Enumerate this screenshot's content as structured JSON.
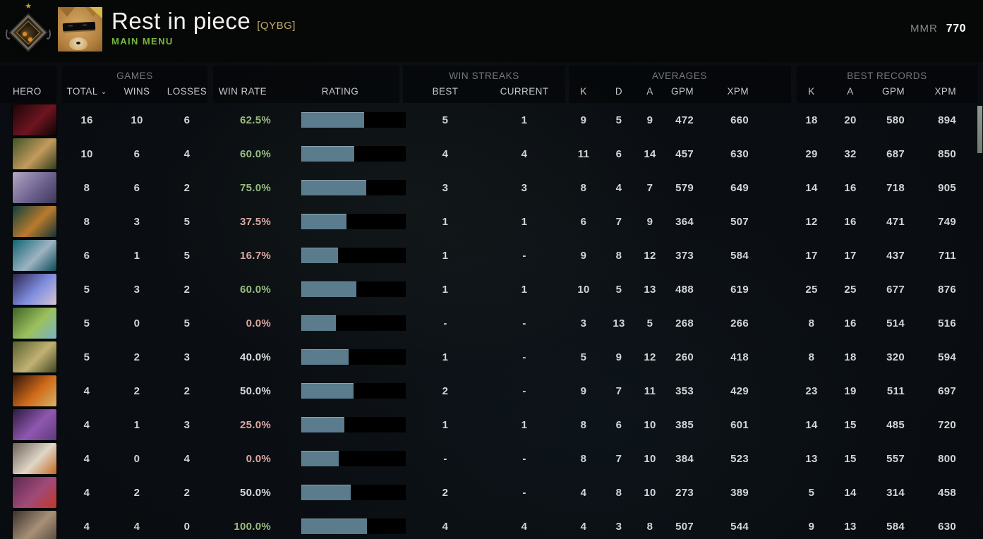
{
  "header": {
    "title": "Rest in piece",
    "clan_tag": "[QYBG]",
    "nav_label": "MAIN MENU",
    "mmr_label": "MMR",
    "mmr_value": "770"
  },
  "icons": {
    "star": "★",
    "sort_chevron": "⌄"
  },
  "colors": {
    "win_green": "#98bd80",
    "loss_pink": "#dcaaa5",
    "neutral_text": "#dadbdc",
    "bar_fill": "#5a7c8d",
    "bar_background": "#000000",
    "main_menu_green": "#76b83e",
    "clan_gold": "#c3ad67"
  },
  "table": {
    "group_labels": {
      "games": "GAMES",
      "win_streaks": "WIN STREAKS",
      "averages": "AVERAGES",
      "best_records": "BEST RECORDS"
    },
    "columns": {
      "hero": "HERO",
      "total": "TOTAL",
      "wins": "WINS",
      "losses": "LOSSES",
      "win_rate": "WIN RATE",
      "rating": "RATING",
      "best": "BEST",
      "current": "CURRENT",
      "k": "K",
      "d": "D",
      "a": "A",
      "gpm": "GPM",
      "xpm": "XPM",
      "rec_k": "K",
      "rec_a": "A",
      "rec_gpm": "GPM",
      "rec_xpm": "XPM"
    },
    "sort_column": "total"
  },
  "rows": [
    {
      "hero": "shadow-fiend",
      "portrait": [
        "#1a0508",
        "#6e1520",
        "#0a0304"
      ],
      "total": "16",
      "wins": "10",
      "losses": "6",
      "win_rate": "62.5%",
      "win_rate_tone": "green",
      "rating_fill": 0.6,
      "streak_best": "5",
      "streak_current": "1",
      "k": "9",
      "d": "5",
      "a": "9",
      "gpm": "472",
      "xpm": "660",
      "rec_k": "18",
      "rec_a": "20",
      "rec_gpm": "580",
      "rec_xpm": "894"
    },
    {
      "hero": "monkey-king",
      "portrait": [
        "#3f5526",
        "#c39a5c",
        "#2e3d1d"
      ],
      "total": "10",
      "wins": "6",
      "losses": "4",
      "win_rate": "60.0%",
      "win_rate_tone": "green",
      "rating_fill": 0.51,
      "streak_best": "4",
      "streak_current": "4",
      "k": "11",
      "d": "6",
      "a": "14",
      "gpm": "457",
      "xpm": "630",
      "rec_k": "29",
      "rec_a": "32",
      "rec_gpm": "687",
      "rec_xpm": "850"
    },
    {
      "hero": "anti-mage",
      "portrait": [
        "#b4a6c4",
        "#6f6390",
        "#3d3658"
      ],
      "total": "8",
      "wins": "6",
      "losses": "2",
      "win_rate": "75.0%",
      "win_rate_tone": "green",
      "rating_fill": 0.62,
      "streak_best": "3",
      "streak_current": "3",
      "k": "8",
      "d": "4",
      "a": "7",
      "gpm": "579",
      "xpm": "649",
      "rec_k": "14",
      "rec_a": "16",
      "rec_gpm": "718",
      "rec_xpm": "905"
    },
    {
      "hero": "slark",
      "portrait": [
        "#0e3f3c",
        "#b97a2e",
        "#123234"
      ],
      "total": "8",
      "wins": "3",
      "losses": "5",
      "win_rate": "37.5%",
      "win_rate_tone": "red",
      "rating_fill": 0.43,
      "streak_best": "1",
      "streak_current": "1",
      "k": "6",
      "d": "7",
      "a": "9",
      "gpm": "364",
      "xpm": "507",
      "rec_k": "12",
      "rec_a": "16",
      "rec_gpm": "471",
      "rec_xpm": "749"
    },
    {
      "hero": "sven",
      "portrait": [
        "#0e6673",
        "#9eb3c2",
        "#0a4a56"
      ],
      "total": "6",
      "wins": "1",
      "losses": "5",
      "win_rate": "16.7%",
      "win_rate_tone": "red",
      "rating_fill": 0.35,
      "streak_best": "1",
      "streak_current": "-",
      "k": "9",
      "d": "8",
      "a": "12",
      "gpm": "373",
      "xpm": "584",
      "rec_k": "17",
      "rec_a": "17",
      "rec_gpm": "437",
      "rec_xpm": "711"
    },
    {
      "hero": "luna",
      "portrait": [
        "#2e2450",
        "#7f8fe0",
        "#d9c3d4"
      ],
      "total": "5",
      "wins": "3",
      "losses": "2",
      "win_rate": "60.0%",
      "win_rate_tone": "green",
      "rating_fill": 0.53,
      "streak_best": "1",
      "streak_current": "1",
      "k": "10",
      "d": "5",
      "a": "13",
      "gpm": "488",
      "xpm": "619",
      "rec_k": "25",
      "rec_a": "25",
      "rec_gpm": "677",
      "rec_xpm": "876"
    },
    {
      "hero": "natures-prophet",
      "portrait": [
        "#3c6426",
        "#9cc05e",
        "#78b4c4"
      ],
      "total": "5",
      "wins": "0",
      "losses": "5",
      "win_rate": "0.0%",
      "win_rate_tone": "red",
      "rating_fill": 0.33,
      "streak_best": "-",
      "streak_current": "-",
      "k": "3",
      "d": "13",
      "a": "5",
      "gpm": "268",
      "xpm": "266",
      "rec_k": "8",
      "rec_a": "16",
      "rec_gpm": "514",
      "rec_xpm": "516"
    },
    {
      "hero": "pudge",
      "portrait": [
        "#56602e",
        "#c2b273",
        "#3d4421"
      ],
      "total": "5",
      "wins": "2",
      "losses": "3",
      "win_rate": "40.0%",
      "win_rate_tone": "neutral",
      "rating_fill": 0.45,
      "streak_best": "1",
      "streak_current": "-",
      "k": "5",
      "d": "9",
      "a": "12",
      "gpm": "260",
      "xpm": "418",
      "rec_k": "8",
      "rec_a": "18",
      "rec_gpm": "320",
      "rec_xpm": "594"
    },
    {
      "hero": "doom",
      "portrait": [
        "#2e1408",
        "#cf6a1a",
        "#d8b468"
      ],
      "total": "4",
      "wins": "2",
      "losses": "2",
      "win_rate": "50.0%",
      "win_rate_tone": "neutral",
      "rating_fill": 0.5,
      "streak_best": "2",
      "streak_current": "-",
      "k": "9",
      "d": "7",
      "a": "11",
      "gpm": "353",
      "xpm": "429",
      "rec_k": "23",
      "rec_a": "19",
      "rec_gpm": "511",
      "rec_xpm": "697"
    },
    {
      "hero": "faceless-void",
      "portrait": [
        "#2c1a3e",
        "#9057b0",
        "#5c3a7a"
      ],
      "total": "4",
      "wins": "1",
      "losses": "3",
      "win_rate": "25.0%",
      "win_rate_tone": "red",
      "rating_fill": 0.41,
      "streak_best": "1",
      "streak_current": "1",
      "k": "8",
      "d": "6",
      "a": "10",
      "gpm": "385",
      "xpm": "601",
      "rec_k": "14",
      "rec_a": "15",
      "rec_gpm": "485",
      "rec_xpm": "720"
    },
    {
      "hero": "juggernaut",
      "portrait": [
        "#6e6258",
        "#e0d6c8",
        "#c46a20"
      ],
      "total": "4",
      "wins": "0",
      "losses": "4",
      "win_rate": "0.0%",
      "win_rate_tone": "red",
      "rating_fill": 0.36,
      "streak_best": "-",
      "streak_current": "-",
      "k": "8",
      "d": "7",
      "a": "10",
      "gpm": "384",
      "xpm": "523",
      "rec_k": "13",
      "rec_a": "15",
      "rec_gpm": "557",
      "rec_xpm": "800"
    },
    {
      "hero": "lion",
      "portrait": [
        "#5c2a50",
        "#a04a78",
        "#c03828"
      ],
      "total": "4",
      "wins": "2",
      "losses": "2",
      "win_rate": "50.0%",
      "win_rate_tone": "neutral",
      "rating_fill": 0.47,
      "streak_best": "2",
      "streak_current": "-",
      "k": "4",
      "d": "8",
      "a": "10",
      "gpm": "273",
      "xpm": "389",
      "rec_k": "5",
      "rec_a": "14",
      "rec_gpm": "314",
      "rec_xpm": "458"
    },
    {
      "hero": "kunkka",
      "portrait": [
        "#3a322c",
        "#a89078",
        "#564a40"
      ],
      "total": "4",
      "wins": "4",
      "losses": "0",
      "win_rate": "100.0%",
      "win_rate_tone": "green",
      "rating_fill": 0.63,
      "streak_best": "4",
      "streak_current": "4",
      "k": "4",
      "d": "3",
      "a": "8",
      "gpm": "507",
      "xpm": "544",
      "rec_k": "9",
      "rec_a": "13",
      "rec_gpm": "584",
      "rec_xpm": "630"
    }
  ]
}
